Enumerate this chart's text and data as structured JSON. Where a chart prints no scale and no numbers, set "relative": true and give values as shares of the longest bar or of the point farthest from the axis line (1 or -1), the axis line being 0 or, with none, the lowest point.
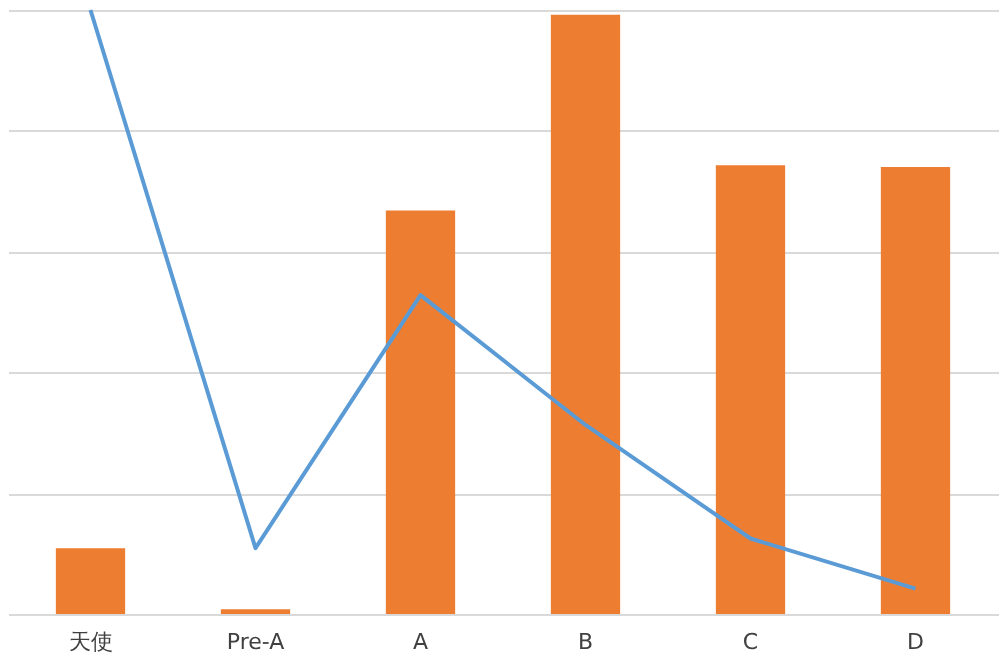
{
  "chart_data": {
    "type": "bar",
    "relative": true,
    "grid": "y",
    "categories": [
      "天使",
      "Pre-A",
      "A",
      "B",
      "C",
      "D"
    ],
    "series": [
      {
        "color": "#ed7d31",
        "values": [
          0.109,
          0.008,
          0.668,
          0.992,
          0.743,
          0.74
        ]
      },
      {
        "type": "line",
        "color": "#5b9bd5",
        "values": [
          1,
          0.109,
          0.528,
          0.313,
          0.125,
          0.042
        ]
      }
    ]
  }
}
